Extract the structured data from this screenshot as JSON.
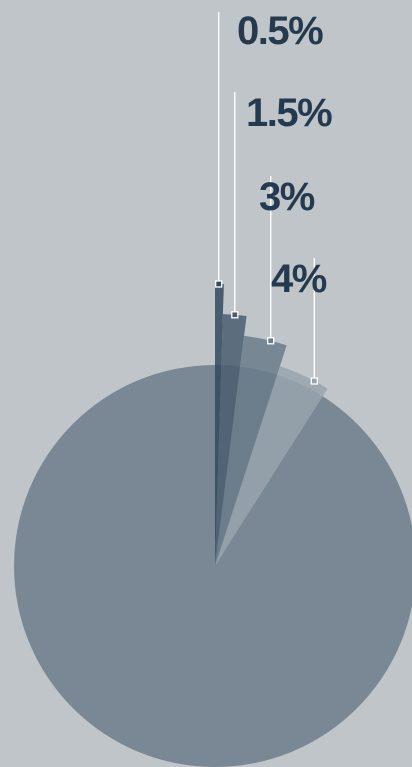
{
  "chart_data": {
    "type": "pie",
    "title": "",
    "slices": [
      {
        "label": "0.5%",
        "value": 0.5,
        "color": "#34495e",
        "stem": 0.42
      },
      {
        "label": "1.5%",
        "value": 1.5,
        "color": "#4a5d70",
        "stem": 0.5
      },
      {
        "label": "3%",
        "value": 3,
        "color": "#6a7b8b",
        "stem": 0.62
      },
      {
        "label": "4%",
        "value": 4,
        "color": "#98a3ad",
        "stem": 0.71
      }
    ],
    "colors": {
      "background": "#c0c5c9",
      "main_slice": "#7a8895",
      "label_text": "#253a4e",
      "leader_line": "#ffffff"
    }
  }
}
